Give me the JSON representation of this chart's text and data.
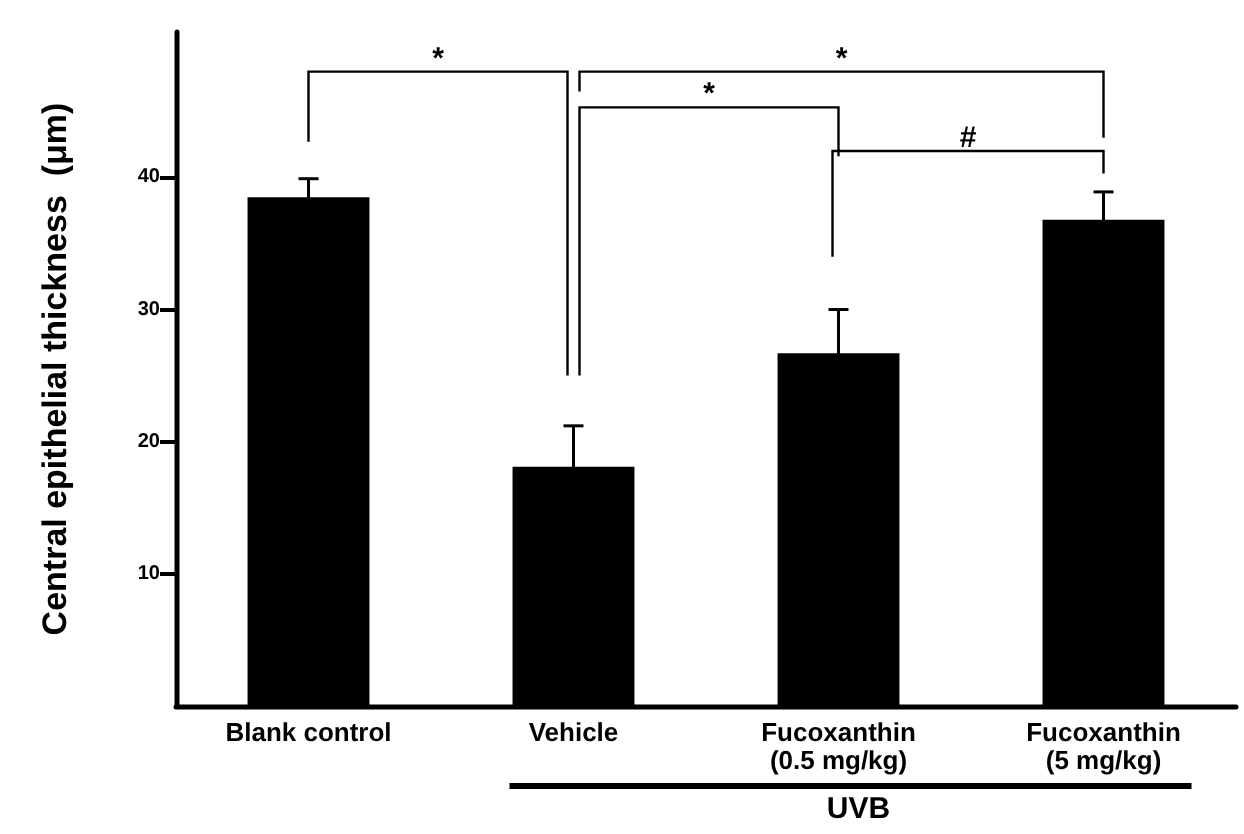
{
  "chart_data": {
    "type": "bar",
    "ylabel": "Central epithelial thickness  (μm)",
    "categories": [
      "Blank control",
      "Vehicle",
      "Fucoxanthin\n(0.5 mg/kg)",
      "Fucoxanthin\n(5 mg/kg)"
    ],
    "values": [
      38.5,
      18.1,
      26.7,
      36.8
    ],
    "errors": [
      1.4,
      3.1,
      3.3,
      2.1
    ],
    "color": "#000000",
    "ylim": [
      0,
      51
    ],
    "yticks": [
      10,
      20,
      30,
      40
    ],
    "grid": false,
    "annotations": [
      "*",
      "*",
      "*",
      "#",
      "UVB"
    ]
  }
}
